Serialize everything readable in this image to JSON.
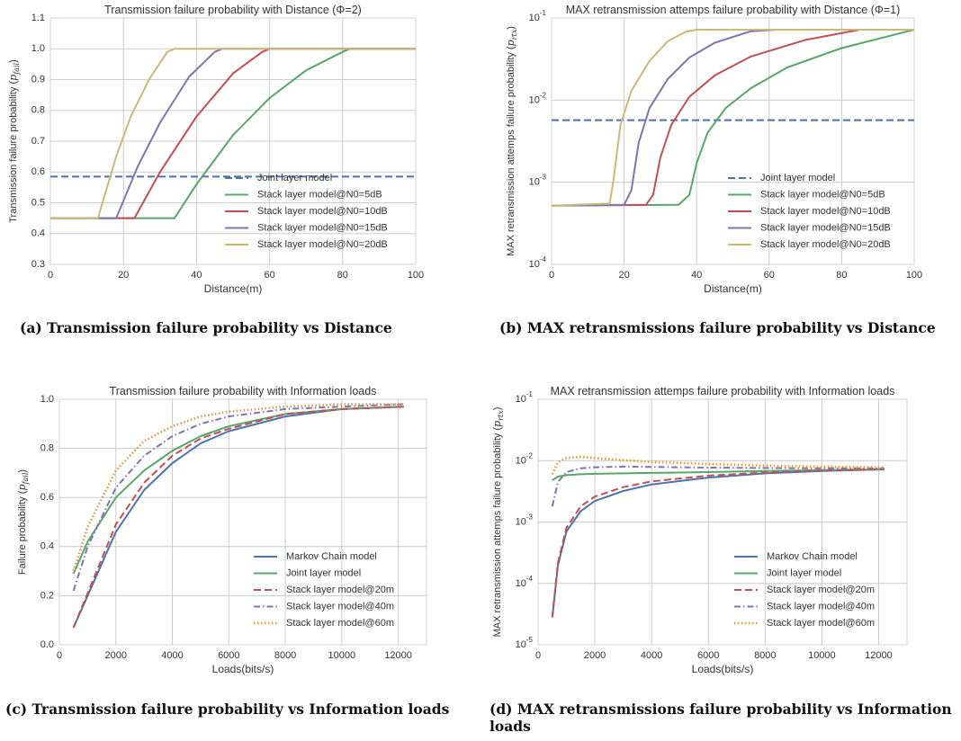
{
  "chart_data": [
    {
      "type": "line",
      "title": "Transmission failure probability with Distance (Φ=2)",
      "xlabel": "Distance(m)",
      "ylabel": "Transmission failure probability (p_fail)",
      "xlim": [
        0,
        100
      ],
      "ylim": [
        0.3,
        1.1
      ],
      "yscale": "linear",
      "grid": true,
      "legend": "lower-right",
      "x_ticks": [
        "0",
        "20",
        "40",
        "60",
        "80",
        "100"
      ],
      "y_ticks": [
        "0.3",
        "0.4",
        "0.5",
        "0.6",
        "0.7",
        "0.8",
        "0.9",
        "1.0",
        "1.1"
      ],
      "series": [
        {
          "name": "Joint layer model",
          "color": "#4c72b0",
          "style": "dashed",
          "x": [
            0,
            100
          ],
          "y": [
            0.585,
            0.585
          ]
        },
        {
          "name": "Stack layer model@N0=5dB",
          "color": "#55a868",
          "style": "solid",
          "x": [
            0,
            34,
            40,
            50,
            60,
            70,
            80,
            82,
            100
          ],
          "y": [
            0.45,
            0.45,
            0.56,
            0.72,
            0.84,
            0.93,
            0.99,
            1.0,
            1.0
          ]
        },
        {
          "name": "Stack layer model@N0=10dB",
          "color": "#c44e52",
          "style": "solid",
          "x": [
            0,
            23,
            30,
            40,
            50,
            58,
            60,
            100
          ],
          "y": [
            0.45,
            0.45,
            0.6,
            0.78,
            0.92,
            0.99,
            1.0,
            1.0
          ]
        },
        {
          "name": "Stack layer model@N0=15dB",
          "color": "#8172b2",
          "style": "solid",
          "x": [
            0,
            18,
            24,
            30,
            38,
            45,
            47,
            100
          ],
          "y": [
            0.45,
            0.45,
            0.62,
            0.76,
            0.91,
            0.99,
            1.0,
            1.0
          ]
        },
        {
          "name": "Stack layer model@N0=20dB",
          "color": "#ccb974",
          "style": "solid",
          "x": [
            0,
            13,
            18,
            22,
            27,
            32,
            34,
            100
          ],
          "y": [
            0.45,
            0.45,
            0.65,
            0.78,
            0.9,
            0.99,
            1.0,
            1.0
          ]
        }
      ]
    },
    {
      "type": "line",
      "title": "MAX retransmission attemps failure probability with Distance (Φ=1)",
      "xlabel": "Distance(m)",
      "ylabel": "MAX retransmission attemps failure probability (p_rtx)",
      "xlim": [
        0,
        100
      ],
      "ylim": [
        0.0001,
        0.1
      ],
      "yscale": "log",
      "grid": true,
      "legend": "lower-right",
      "x_ticks": [
        "0",
        "20",
        "40",
        "60",
        "80",
        "100"
      ],
      "y_ticks": [
        "10^-4",
        "10^-3",
        "10^-2",
        "10^-1"
      ],
      "series": [
        {
          "name": "Joint layer model",
          "color": "#4c72b0",
          "style": "dashed",
          "x": [
            0,
            100
          ],
          "y": [
            0.0057,
            0.0057
          ]
        },
        {
          "name": "Stack layer model@N0=5dB",
          "color": "#55a868",
          "style": "solid",
          "x": [
            0,
            35,
            38,
            40,
            43,
            48,
            55,
            65,
            80,
            100
          ],
          "y": [
            0.00052,
            0.00053,
            0.0007,
            0.0017,
            0.004,
            0.008,
            0.014,
            0.025,
            0.043,
            0.072
          ]
        },
        {
          "name": "Stack layer model@N0=10dB",
          "color": "#c44e52",
          "style": "solid",
          "x": [
            0,
            26,
            28,
            30,
            33,
            38,
            45,
            55,
            70,
            85,
            100
          ],
          "y": [
            0.00052,
            0.00053,
            0.0007,
            0.002,
            0.005,
            0.011,
            0.02,
            0.034,
            0.054,
            0.072,
            0.072
          ]
        },
        {
          "name": "Stack layer model@N0=15dB",
          "color": "#8172b2",
          "style": "solid",
          "x": [
            0,
            20,
            22,
            24,
            27,
            32,
            38,
            45,
            55,
            62,
            100
          ],
          "y": [
            0.00052,
            0.00053,
            0.0008,
            0.003,
            0.008,
            0.018,
            0.033,
            0.05,
            0.069,
            0.072,
            0.072
          ]
        },
        {
          "name": "Stack layer model@N0=20dB",
          "color": "#ccb974",
          "style": "solid",
          "x": [
            0,
            16,
            17,
            19,
            22,
            27,
            32,
            37,
            40,
            100
          ],
          "y": [
            0.00052,
            0.00055,
            0.001,
            0.005,
            0.013,
            0.03,
            0.052,
            0.068,
            0.072,
            0.072
          ]
        }
      ]
    },
    {
      "type": "line",
      "title": "Transmission failure probability with Information loads",
      "xlabel": "Loads(bits/s)",
      "ylabel": "Failure probability (p_fail)",
      "xlim": [
        0,
        13000
      ],
      "ylim": [
        0.0,
        1.0
      ],
      "yscale": "linear",
      "grid": true,
      "legend": "lower-right",
      "x_ticks": [
        "0",
        "2000",
        "4000",
        "6000",
        "8000",
        "10000",
        "12000"
      ],
      "y_ticks": [
        "0.0",
        "0.2",
        "0.4",
        "0.6",
        "0.8",
        "1.0"
      ],
      "series": [
        {
          "name": "Markov Chain model",
          "color": "#4c72b0",
          "style": "solid",
          "x": [
            500,
            1000,
            2000,
            3000,
            4000,
            5000,
            6000,
            8000,
            10000,
            12200
          ],
          "y": [
            0.07,
            0.2,
            0.46,
            0.63,
            0.74,
            0.82,
            0.87,
            0.93,
            0.96,
            0.97
          ]
        },
        {
          "name": "Joint layer model",
          "color": "#55a868",
          "style": "solid",
          "x": [
            500,
            1000,
            2000,
            3000,
            4000,
            5000,
            6000,
            8000,
            10000,
            12200
          ],
          "y": [
            0.29,
            0.42,
            0.6,
            0.71,
            0.79,
            0.85,
            0.89,
            0.94,
            0.96,
            0.97
          ]
        },
        {
          "name": "Stack layer model@20m",
          "color": "#c44e52",
          "style": "dashed",
          "x": [
            500,
            1000,
            2000,
            3000,
            4000,
            5000,
            6000,
            8000,
            10000,
            12200
          ],
          "y": [
            0.07,
            0.21,
            0.49,
            0.66,
            0.77,
            0.84,
            0.88,
            0.94,
            0.96,
            0.97
          ]
        },
        {
          "name": "Stack layer model@40m",
          "color": "#8172b2",
          "style": "dashdot",
          "x": [
            500,
            1000,
            2000,
            3000,
            4000,
            5000,
            6000,
            8000,
            10000,
            12200
          ],
          "y": [
            0.22,
            0.4,
            0.64,
            0.77,
            0.85,
            0.9,
            0.93,
            0.96,
            0.97,
            0.98
          ]
        },
        {
          "name": "Stack layer model@60m",
          "color": "#dd9a3c",
          "style": "dotted",
          "x": [
            500,
            1000,
            2000,
            3000,
            4000,
            5000,
            6000,
            8000,
            10000,
            12200
          ],
          "y": [
            0.3,
            0.48,
            0.71,
            0.83,
            0.89,
            0.93,
            0.95,
            0.97,
            0.98,
            0.98
          ]
        }
      ]
    },
    {
      "type": "line",
      "title": "MAX retransmission attemps failure probability with Information loads",
      "xlabel": "Loads(bits/s)",
      "ylabel": "MAX retransmission attemps failure probability (p_rtx)",
      "xlim": [
        0,
        13000
      ],
      "ylim": [
        1e-05,
        0.1
      ],
      "yscale": "log",
      "grid": true,
      "legend": "lower-right",
      "x_ticks": [
        "0",
        "2000",
        "4000",
        "6000",
        "8000",
        "10000",
        "12000"
      ],
      "y_ticks": [
        "10^-5",
        "10^-4",
        "10^-3",
        "10^-2",
        "10^-1"
      ],
      "series": [
        {
          "name": "Markov Chain model",
          "color": "#4c72b0",
          "style": "solid",
          "x": [
            500,
            700,
            1000,
            1500,
            2000,
            3000,
            4000,
            6000,
            8000,
            10000,
            12200
          ],
          "y": [
            2.8e-05,
            0.0002,
            0.0007,
            0.0015,
            0.0022,
            0.0032,
            0.0041,
            0.0053,
            0.0062,
            0.0068,
            0.0072
          ]
        },
        {
          "name": "Joint layer model",
          "color": "#55a868",
          "style": "solid",
          "x": [
            500,
            700,
            1000,
            1500,
            2000,
            4000,
            6000,
            8000,
            10000,
            12200
          ],
          "y": [
            0.0048,
            0.0055,
            0.0058,
            0.006,
            0.0061,
            0.0063,
            0.0065,
            0.0068,
            0.007,
            0.0072
          ]
        },
        {
          "name": "Stack layer model@20m",
          "color": "#c44e52",
          "style": "dashed",
          "x": [
            500,
            700,
            1000,
            1500,
            2000,
            3000,
            4000,
            6000,
            8000,
            10000,
            12200
          ],
          "y": [
            2.8e-05,
            0.00022,
            0.0008,
            0.0018,
            0.0026,
            0.0037,
            0.0046,
            0.0057,
            0.0064,
            0.0069,
            0.0073
          ]
        },
        {
          "name": "Stack layer model@40m",
          "color": "#8172b2",
          "style": "dashdot",
          "x": [
            500,
            700,
            1000,
            1500,
            2000,
            3000,
            4000,
            6000,
            8000,
            10000,
            12200
          ],
          "y": [
            0.0018,
            0.0045,
            0.0065,
            0.0075,
            0.0078,
            0.008,
            0.0079,
            0.0077,
            0.0076,
            0.0075,
            0.0075
          ]
        },
        {
          "name": "Stack layer model@60m",
          "color": "#dd9a3c",
          "style": "dotted",
          "x": [
            500,
            700,
            1000,
            1500,
            2000,
            3000,
            4000,
            6000,
            8000,
            10000,
            12200
          ],
          "y": [
            0.006,
            0.0095,
            0.011,
            0.0115,
            0.011,
            0.0102,
            0.0095,
            0.0088,
            0.0083,
            0.008,
            0.0078
          ]
        }
      ]
    }
  ],
  "captions": [
    "(a) Transmission failure probability vs Distance",
    "(b) MAX retransmissions failure probability vs Distance",
    "(c) Transmission failure probability vs Information loads",
    "(d) MAX retransmissions failure probability vs Information loads"
  ]
}
